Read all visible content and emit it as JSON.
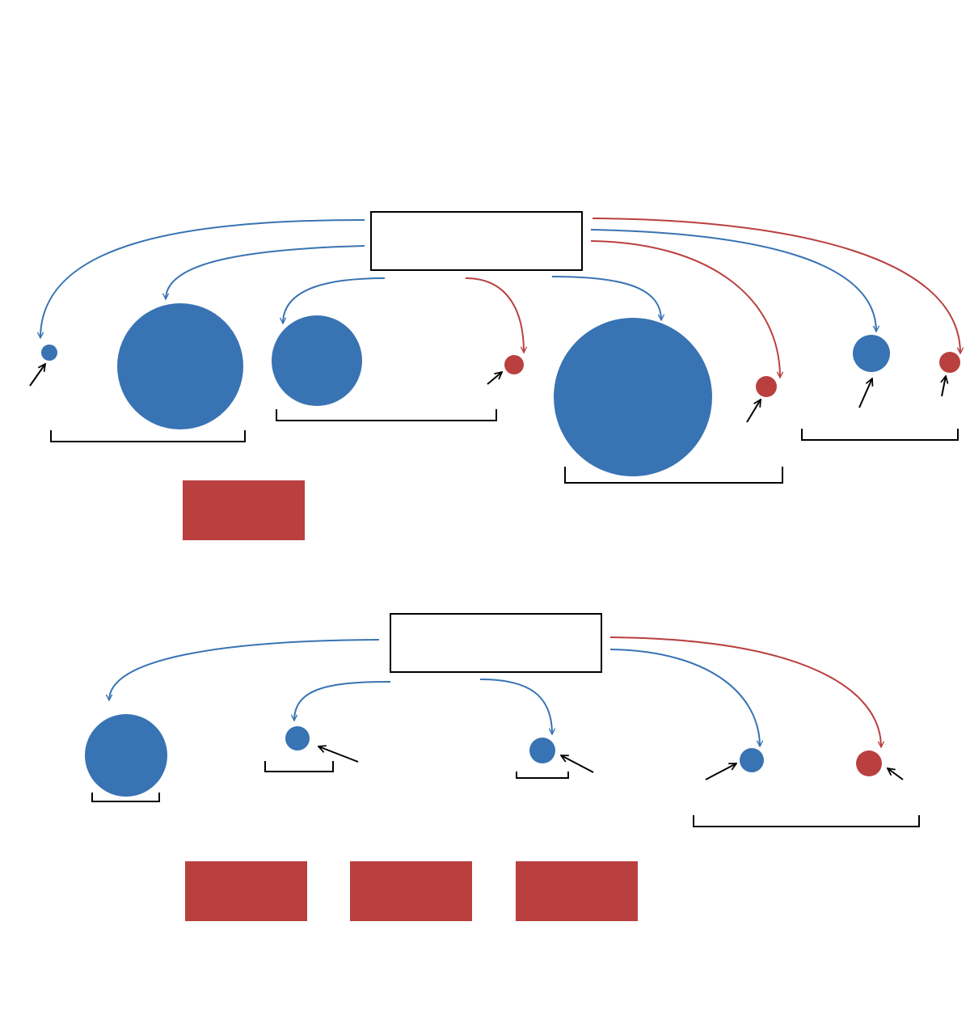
{
  "colors": {
    "blue": "#3873b3",
    "red": "#b9403f",
    "line": "#000000",
    "box_fill": "#ffffff",
    "background": "#ffffff"
  },
  "diagrams": [
    {
      "source_box_label": "",
      "node_colors": [
        "blue",
        "blue",
        "blue",
        "red",
        "blue",
        "red",
        "blue",
        "red"
      ],
      "group_brackets": 4,
      "legend_blocks": 1
    },
    {
      "source_box_label": "",
      "node_colors": [
        "blue",
        "blue",
        "blue",
        "blue",
        "red"
      ],
      "group_brackets": 4,
      "legend_blocks": 3
    }
  ]
}
